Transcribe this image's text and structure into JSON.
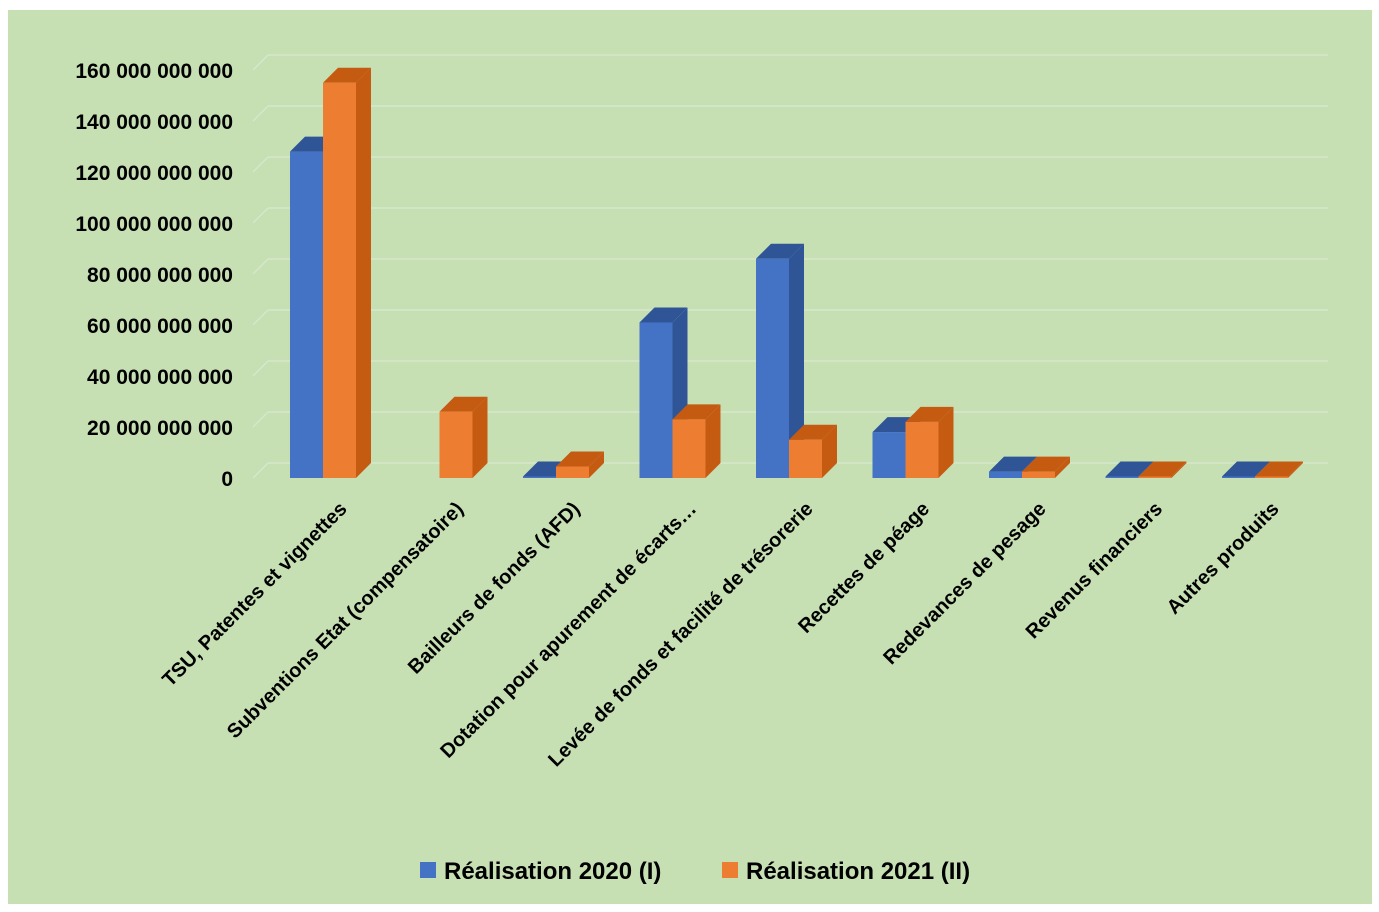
{
  "chart_data": {
    "type": "bar",
    "subtype": "3d-clustered-column",
    "title": "",
    "xlabel": "",
    "ylabel": "",
    "ylim": [
      0,
      160000000000
    ],
    "ytick_step": 20000000000,
    "yticks": [
      "0",
      "20 000 000 000",
      "40 000 000 000",
      "60 000 000 000",
      "80 000 000 000",
      "100 000 000 000",
      "120 000 000 000",
      "140 000 000 000",
      "160 000 000 000"
    ],
    "grid": true,
    "legend_position": "bottom",
    "background_color": "#c6e0b4",
    "categories": [
      "TSU, Patentes et vignettes",
      "Subventions Etat (compensatoire)",
      "Bailleurs de fonds (AFD)",
      "Dotation pour apurement de écarts…",
      "Levée de fonds et facilité de trésorerie",
      "Recettes de péage",
      "Redevances de pesage",
      "Revenus financiers",
      "Autres produits"
    ],
    "series": [
      {
        "name": "Réalisation 2020 (I)",
        "color": "#4472c4",
        "side_color": "#2f5597",
        "values": [
          128000000000,
          0,
          500000000,
          61000000000,
          86000000000,
          18000000000,
          2500000000,
          200000000,
          200000000
        ]
      },
      {
        "name": "Réalisation 2021 (II)",
        "color": "#ed7d31",
        "side_color": "#c55a11",
        "values": [
          155000000000,
          26000000000,
          4500000000,
          23000000000,
          15000000000,
          22000000000,
          2500000000,
          200000000,
          200000000
        ]
      }
    ]
  }
}
